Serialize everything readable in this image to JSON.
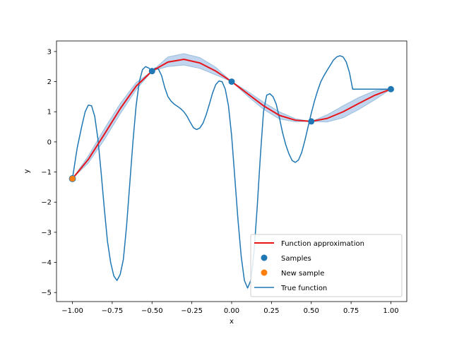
{
  "chart_data": {
    "type": "line",
    "xlabel": "x",
    "ylabel": "y",
    "xlim": [
      -1.1,
      1.1
    ],
    "ylim": [
      -5.3,
      3.35
    ],
    "xticks": [
      -1.0,
      -0.75,
      -0.5,
      -0.25,
      0.0,
      0.25,
      0.5,
      0.75,
      1.0
    ],
    "xtick_labels": [
      "−1.00",
      "−0.75",
      "−0.50",
      "−0.25",
      "0.00",
      "0.25",
      "0.50",
      "0.75",
      "1.00"
    ],
    "yticks": [
      -5,
      -4,
      -3,
      -2,
      -1,
      0,
      1,
      2,
      3
    ],
    "ytick_labels": [
      "−5",
      "−4",
      "−3",
      "−2",
      "−1",
      "0",
      "1",
      "2",
      "3"
    ],
    "grid": false,
    "legend_position": "lower-right",
    "colors": {
      "approximation": "#e8141a",
      "true_function": "#1f77b4",
      "samples": "#1f77b4",
      "new_sample": "#ff7f0e",
      "band": "#aec7e8"
    },
    "series": [
      {
        "name": "Function approximation",
        "style": "line",
        "x": [
          -1.0,
          -0.9,
          -0.8,
          -0.7,
          -0.6,
          -0.5,
          -0.4,
          -0.3,
          -0.2,
          -0.1,
          0.0,
          0.1,
          0.2,
          0.3,
          0.4,
          0.5,
          0.6,
          0.7,
          0.8,
          0.9,
          1.0
        ],
        "y": [
          -1.22,
          -0.58,
          0.25,
          1.1,
          1.85,
          2.35,
          2.65,
          2.74,
          2.62,
          2.35,
          2.0,
          1.6,
          1.2,
          0.88,
          0.72,
          0.68,
          0.78,
          1.0,
          1.28,
          1.55,
          1.75
        ],
        "band_upper": [
          -1.22,
          -0.46,
          0.43,
          1.27,
          1.97,
          2.35,
          2.82,
          2.93,
          2.8,
          2.48,
          2.0,
          1.68,
          1.32,
          1.0,
          0.77,
          0.68,
          0.9,
          1.2,
          1.48,
          1.7,
          1.75
        ],
        "band_lower": [
          -1.22,
          -0.7,
          0.07,
          0.93,
          1.73,
          2.35,
          2.5,
          2.55,
          2.44,
          2.22,
          2.0,
          1.52,
          1.08,
          0.76,
          0.67,
          0.68,
          0.66,
          0.8,
          1.08,
          1.4,
          1.75
        ]
      },
      {
        "name": "Samples",
        "style": "points",
        "x": [
          -0.5,
          0.0,
          0.5,
          1.0
        ],
        "y": [
          2.35,
          2.0,
          0.68,
          1.75
        ]
      },
      {
        "name": "New sample",
        "style": "points",
        "x": [
          -1.0
        ],
        "y": [
          -1.22
        ]
      },
      {
        "name": "True function",
        "style": "line",
        "x": [
          -1.0,
          -0.97,
          -0.94,
          -0.92,
          -0.9,
          -0.88,
          -0.86,
          -0.84,
          -0.82,
          -0.8,
          -0.78,
          -0.76,
          -0.74,
          -0.72,
          -0.7,
          -0.68,
          -0.66,
          -0.64,
          -0.62,
          -0.6,
          -0.58,
          -0.56,
          -0.54,
          -0.52,
          -0.5,
          -0.48,
          -0.46,
          -0.44,
          -0.42,
          -0.4,
          -0.38,
          -0.36,
          -0.34,
          -0.32,
          -0.3,
          -0.28,
          -0.26,
          -0.24,
          -0.22,
          -0.2,
          -0.18,
          -0.16,
          -0.14,
          -0.12,
          -0.1,
          -0.08,
          -0.06,
          -0.04,
          -0.02,
          0.0,
          0.02,
          0.04,
          0.06,
          0.08,
          0.1,
          0.12,
          0.14,
          0.16,
          0.18,
          0.2,
          0.22,
          0.24,
          0.26,
          0.28,
          0.3,
          0.32,
          0.34,
          0.36,
          0.38,
          0.4,
          0.42,
          0.44,
          0.46,
          0.48,
          0.5,
          0.52,
          0.54,
          0.56,
          0.58,
          0.6,
          0.62,
          0.64,
          0.66,
          0.68,
          0.7,
          0.72,
          0.74,
          0.76,
          0.78,
          0.8,
          0.82,
          0.84,
          0.86,
          0.88,
          0.9,
          0.92,
          0.94,
          0.96,
          0.98,
          1.0
        ],
        "y": [
          -1.22,
          -0.2,
          0.55,
          1.0,
          1.22,
          1.2,
          0.85,
          0.1,
          -1.0,
          -2.2,
          -3.3,
          -4.0,
          -4.45,
          -4.6,
          -4.4,
          -3.9,
          -2.8,
          -1.4,
          0.0,
          1.2,
          2.0,
          2.4,
          2.5,
          2.45,
          2.35,
          2.45,
          2.42,
          2.2,
          1.8,
          1.5,
          1.35,
          1.25,
          1.18,
          1.1,
          1.0,
          0.85,
          0.65,
          0.47,
          0.41,
          0.46,
          0.62,
          0.9,
          1.25,
          1.62,
          1.9,
          2.02,
          2.0,
          1.75,
          1.2,
          0.2,
          -1.2,
          -2.6,
          -3.8,
          -4.6,
          -4.85,
          -4.6,
          -3.7,
          -2.2,
          -0.5,
          1.0,
          1.55,
          1.6,
          1.5,
          1.25,
          0.8,
          0.3,
          -0.1,
          -0.4,
          -0.62,
          -0.68,
          -0.6,
          -0.35,
          0.05,
          0.5,
          0.95,
          1.35,
          1.7,
          2.0,
          2.2,
          2.38,
          2.55,
          2.72,
          2.82,
          2.86,
          2.82,
          2.65,
          2.3,
          1.75,
          1.75,
          1.75,
          1.75,
          1.75,
          1.75,
          1.75,
          1.75,
          1.75,
          1.75,
          1.75,
          1.75,
          1.75
        ]
      }
    ]
  }
}
